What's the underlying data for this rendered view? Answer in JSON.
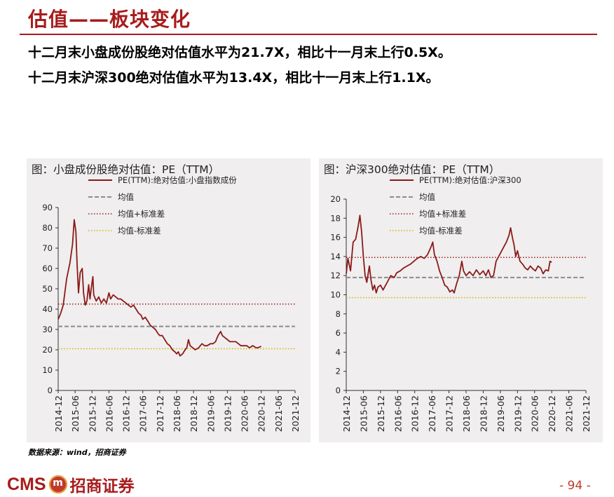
{
  "page": {
    "title": "估值——板块变化",
    "bullets": [
      "十二月末小盘成份股绝对估值水平为21.7X，相比十一月末上行0.5X。",
      "十二月末沪深300绝对估值水平为13.4X，相比十一月末上行1.1X。"
    ],
    "source": "数据来源：wind，招商证券",
    "page_number": "- 94 -",
    "logo": {
      "cms": "CMS",
      "badge": "m",
      "chinese": "招商证券"
    }
  },
  "colors": {
    "brand_red": "#a81c1c",
    "series_line": "#8b1a1a",
    "mean_line": "#8c8c8c",
    "upper_band": "#9b1c1c",
    "lower_band": "#d4b000",
    "panel_bg": "#f0eeee"
  },
  "chart_data": [
    {
      "type": "line",
      "title": "图：小盘成份股绝对估值：PE（TTM）",
      "x_tick_labels": [
        "2014-12",
        "2015-06",
        "2015-12",
        "2016-06",
        "2016-12",
        "2017-06",
        "2017-12",
        "2018-06",
        "2018-12",
        "2019-06",
        "2019-12",
        "2020-06",
        "2020-12",
        "2021-06",
        "2021-12"
      ],
      "ylim": [
        0,
        90
      ],
      "y_ticks": [
        0,
        10,
        20,
        30,
        40,
        50,
        60,
        70,
        80,
        90
      ],
      "legend": [
        {
          "key": "pe",
          "label": "PE(TTM):绝对估值:小盘指数成份",
          "style": "solid"
        },
        {
          "key": "mean",
          "label": "均值",
          "style": "dashed"
        },
        {
          "key": "upper",
          "label": "均值+标准差",
          "style": "dotted-red"
        },
        {
          "key": "lower",
          "label": "均值-标准差",
          "style": "dotted-yellow"
        }
      ],
      "reference_lines": {
        "mean": 31.5,
        "upper": 42.5,
        "lower": 20.5
      },
      "series": [
        {
          "name": "PE(TTM):绝对估值:小盘指数成份",
          "points": [
            [
              0,
              35
            ],
            [
              0.15,
              38
            ],
            [
              0.3,
              42
            ],
            [
              0.5,
              55
            ],
            [
              0.7,
              63
            ],
            [
              0.85,
              72
            ],
            [
              0.95,
              84
            ],
            [
              1.05,
              78
            ],
            [
              1.12,
              62
            ],
            [
              1.2,
              48
            ],
            [
              1.3,
              58
            ],
            [
              1.42,
              60
            ],
            [
              1.5,
              48
            ],
            [
              1.6,
              42
            ],
            [
              1.7,
              44
            ],
            [
              1.8,
              52
            ],
            [
              1.88,
              45
            ],
            [
              1.95,
              50
            ],
            [
              2.05,
              56
            ],
            [
              2.1,
              47
            ],
            [
              2.25,
              44
            ],
            [
              2.4,
              46
            ],
            [
              2.55,
              43
            ],
            [
              2.7,
              45
            ],
            [
              2.85,
              43
            ],
            [
              3.0,
              48
            ],
            [
              3.1,
              45
            ],
            [
              3.25,
              47
            ],
            [
              3.4,
              46
            ],
            [
              3.55,
              45
            ],
            [
              3.7,
              45
            ],
            [
              3.85,
              44
            ],
            [
              4.0,
              43
            ],
            [
              4.15,
              42
            ],
            [
              4.3,
              41
            ],
            [
              4.45,
              42
            ],
            [
              4.6,
              40
            ],
            [
              4.75,
              38
            ],
            [
              4.9,
              37
            ],
            [
              5.0,
              35
            ],
            [
              5.15,
              36
            ],
            [
              5.3,
              34
            ],
            [
              5.45,
              32
            ],
            [
              5.6,
              31
            ],
            [
              5.75,
              30
            ],
            [
              5.9,
              28
            ],
            [
              6.0,
              27
            ],
            [
              6.15,
              27
            ],
            [
              6.3,
              25
            ],
            [
              6.45,
              23
            ],
            [
              6.6,
              22
            ],
            [
              6.75,
              20
            ],
            [
              6.9,
              19
            ],
            [
              7.0,
              18
            ],
            [
              7.1,
              19
            ],
            [
              7.2,
              17
            ],
            [
              7.35,
              18
            ],
            [
              7.5,
              20
            ],
            [
              7.6,
              21
            ],
            [
              7.7,
              25
            ],
            [
              7.8,
              22
            ],
            [
              7.95,
              21
            ],
            [
              8.1,
              20
            ],
            [
              8.3,
              21
            ],
            [
              8.5,
              23
            ],
            [
              8.65,
              22
            ],
            [
              8.8,
              22
            ],
            [
              9.0,
              23
            ],
            [
              9.15,
              23
            ],
            [
              9.3,
              24
            ],
            [
              9.45,
              27
            ],
            [
              9.6,
              29
            ],
            [
              9.7,
              27
            ],
            [
              9.85,
              26
            ],
            [
              10.0,
              25
            ],
            [
              10.15,
              24
            ],
            [
              10.3,
              24
            ],
            [
              10.5,
              24
            ],
            [
              10.65,
              23
            ],
            [
              10.8,
              22
            ],
            [
              11.0,
              22
            ],
            [
              11.15,
              22
            ],
            [
              11.3,
              21
            ],
            [
              11.5,
              22
            ],
            [
              11.7,
              21
            ],
            [
              11.8,
              21
            ],
            [
              12.0,
              21.7
            ]
          ]
        }
      ]
    },
    {
      "type": "line",
      "title": "图：沪深300绝对估值：PE（TTM）",
      "x_tick_labels": [
        "2014-12",
        "2015-06",
        "2015-12",
        "2016-06",
        "2016-12",
        "2017-06",
        "2017-12",
        "2018-06",
        "2018-12",
        "2019-06",
        "2019-12",
        "2020-06",
        "2020-12",
        "2021-06",
        "2021-12"
      ],
      "ylim": [
        0,
        20
      ],
      "y_ticks": [
        0,
        2,
        4,
        6,
        8,
        10,
        12,
        14,
        16,
        18,
        20
      ],
      "legend": [
        {
          "key": "pe",
          "label": "PE(TTM):绝对估值:沪深300",
          "style": "solid"
        },
        {
          "key": "mean",
          "label": "均值",
          "style": "dashed"
        },
        {
          "key": "upper",
          "label": "均值+标准差",
          "style": "dotted-red"
        },
        {
          "key": "lower",
          "label": "均值-标准差",
          "style": "dotted-yellow"
        }
      ],
      "reference_lines": {
        "mean": 11.8,
        "upper": 13.9,
        "lower": 9.7
      },
      "series": [
        {
          "name": "PE(TTM):绝对估值:沪深300",
          "points": [
            [
              0,
              12.2
            ],
            [
              0.1,
              13.8
            ],
            [
              0.25,
              12.5
            ],
            [
              0.4,
              15.5
            ],
            [
              0.55,
              15.8
            ],
            [
              0.7,
              17.2
            ],
            [
              0.8,
              18.3
            ],
            [
              0.9,
              16.5
            ],
            [
              1.0,
              14.0
            ],
            [
              1.1,
              12.0
            ],
            [
              1.2,
              11.3
            ],
            [
              1.35,
              13.0
            ],
            [
              1.45,
              11.5
            ],
            [
              1.55,
              10.5
            ],
            [
              1.65,
              11.0
            ],
            [
              1.75,
              10.2
            ],
            [
              1.85,
              10.8
            ],
            [
              2.0,
              11.0
            ],
            [
              2.15,
              10.5
            ],
            [
              2.3,
              11.0
            ],
            [
              2.45,
              11.5
            ],
            [
              2.6,
              12.0
            ],
            [
              2.8,
              11.8
            ],
            [
              2.95,
              12.3
            ],
            [
              3.15,
              12.5
            ],
            [
              3.35,
              12.8
            ],
            [
              3.55,
              13.0
            ],
            [
              3.75,
              13.2
            ],
            [
              3.95,
              13.5
            ],
            [
              4.15,
              13.8
            ],
            [
              4.35,
              14.0
            ],
            [
              4.55,
              13.8
            ],
            [
              4.75,
              14.2
            ],
            [
              4.95,
              15.0
            ],
            [
              5.05,
              15.5
            ],
            [
              5.15,
              14.2
            ],
            [
              5.3,
              13.5
            ],
            [
              5.45,
              12.5
            ],
            [
              5.6,
              11.8
            ],
            [
              5.75,
              11.0
            ],
            [
              5.9,
              10.8
            ],
            [
              6.05,
              10.3
            ],
            [
              6.2,
              10.5
            ],
            [
              6.3,
              10.2
            ],
            [
              6.45,
              11.2
            ],
            [
              6.6,
              12.0
            ],
            [
              6.75,
              13.5
            ],
            [
              6.85,
              12.5
            ],
            [
              7.0,
              12.0
            ],
            [
              7.2,
              12.4
            ],
            [
              7.4,
              12.0
            ],
            [
              7.6,
              12.6
            ],
            [
              7.8,
              12.1
            ],
            [
              8.0,
              12.5
            ],
            [
              8.15,
              12.0
            ],
            [
              8.3,
              12.6
            ],
            [
              8.45,
              11.8
            ],
            [
              8.6,
              12.0
            ],
            [
              8.75,
              13.5
            ],
            [
              8.9,
              14.0
            ],
            [
              9.05,
              14.5
            ],
            [
              9.2,
              15.0
            ],
            [
              9.35,
              15.5
            ],
            [
              9.5,
              16.2
            ],
            [
              9.6,
              17.0
            ],
            [
              9.7,
              16.0
            ],
            [
              9.8,
              15.2
            ],
            [
              9.9,
              14.0
            ],
            [
              10.0,
              14.6
            ],
            [
              10.15,
              13.5
            ],
            [
              10.3,
              13.2
            ],
            [
              10.45,
              12.8
            ],
            [
              10.6,
              12.6
            ],
            [
              10.75,
              13.0
            ],
            [
              10.9,
              12.7
            ],
            [
              11.05,
              12.5
            ],
            [
              11.2,
              13.0
            ],
            [
              11.35,
              12.8
            ],
            [
              11.5,
              12.2
            ],
            [
              11.65,
              12.6
            ],
            [
              11.8,
              12.5
            ],
            [
              11.9,
              13.5
            ],
            [
              12.0,
              13.4
            ]
          ]
        }
      ]
    }
  ]
}
